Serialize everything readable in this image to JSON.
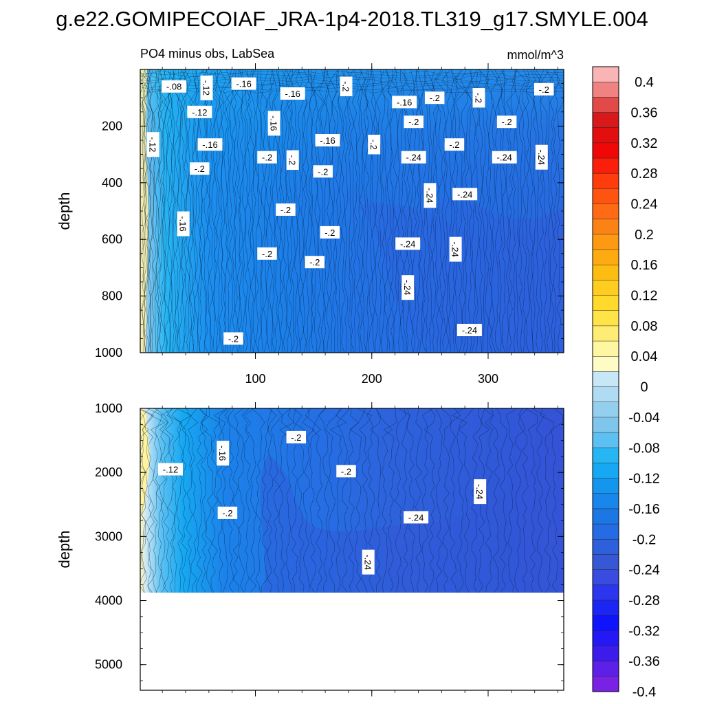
{
  "title": "g.e22.GOMIPECOIAF_JRA-1p4-2018.TL319_g17.SMYLE.004",
  "chart_data": {
    "type": "heatmap",
    "region_label": "PO4 minus obs, LabSea",
    "units": "mmol/m^3",
    "x_range": [
      1,
      365
    ],
    "x_ticks": [
      100,
      200,
      300
    ],
    "x_tick_labels": [
      "100",
      "200",
      "300"
    ],
    "panels": [
      {
        "name": "upper",
        "ylabel": "depth",
        "ylim": [
          1000,
          0
        ],
        "y_ticks": [
          200,
          400,
          600,
          800,
          1000
        ],
        "y_tick_labels": [
          "200",
          "400",
          "600",
          "800",
          "1000"
        ],
        "contour_labels": [
          {
            "text": "-.08",
            "x": 30,
            "y": 60
          },
          {
            "text": "-.12",
            "x": 58,
            "y": 65
          },
          {
            "text": "-.16",
            "x": 90,
            "y": 50
          },
          {
            "text": "-.16",
            "x": 132,
            "y": 85
          },
          {
            "text": "-.2",
            "x": 178,
            "y": 60
          },
          {
            "text": "-.16",
            "x": 228,
            "y": 115
          },
          {
            "text": "-.2",
            "x": 254,
            "y": 100
          },
          {
            "text": "-.2",
            "x": 292,
            "y": 100
          },
          {
            "text": "-.2",
            "x": 348,
            "y": 70
          },
          {
            "text": "-.12",
            "x": 52,
            "y": 150
          },
          {
            "text": "-.16",
            "x": 116,
            "y": 190
          },
          {
            "text": "-.2",
            "x": 236,
            "y": 185
          },
          {
            "text": "-.2",
            "x": 316,
            "y": 185
          },
          {
            "text": "-.12",
            "x": 12,
            "y": 265
          },
          {
            "text": "-.16",
            "x": 61,
            "y": 265
          },
          {
            "text": "-.16",
            "x": 162,
            "y": 250
          },
          {
            "text": "-.2",
            "x": 202,
            "y": 265
          },
          {
            "text": "-.2",
            "x": 271,
            "y": 265
          },
          {
            "text": "-.2",
            "x": 110,
            "y": 310
          },
          {
            "text": "-.2",
            "x": 132,
            "y": 320
          },
          {
            "text": "-.24",
            "x": 236,
            "y": 310
          },
          {
            "text": "-.24",
            "x": 314,
            "y": 310
          },
          {
            "text": "-.24",
            "x": 346,
            "y": 310
          },
          {
            "text": "-.2",
            "x": 52,
            "y": 350
          },
          {
            "text": "-.2",
            "x": 158,
            "y": 360
          },
          {
            "text": "-.24",
            "x": 250,
            "y": 445
          },
          {
            "text": "-.24",
            "x": 280,
            "y": 440
          },
          {
            "text": "-.2",
            "x": 126,
            "y": 495
          },
          {
            "text": "-.16",
            "x": 38,
            "y": 545
          },
          {
            "text": "-.2",
            "x": 164,
            "y": 575
          },
          {
            "text": "-.24",
            "x": 231,
            "y": 615
          },
          {
            "text": "-.24",
            "x": 272,
            "y": 635
          },
          {
            "text": "-.2",
            "x": 110,
            "y": 650
          },
          {
            "text": "-.2",
            "x": 151,
            "y": 680
          },
          {
            "text": "-.24",
            "x": 231,
            "y": 770
          },
          {
            "text": "-.24",
            "x": 284,
            "y": 920
          },
          {
            "text": "-.2",
            "x": 81,
            "y": 950
          }
        ]
      },
      {
        "name": "lower",
        "ylabel": "depth",
        "ylim": [
          5400,
          1000
        ],
        "y_ticks": [
          1000,
          2000,
          3000,
          4000,
          5000
        ],
        "y_tick_labels": [
          "1000",
          "2000",
          "3000",
          "4000",
          "5000"
        ],
        "seafloor_depth": 3880,
        "contour_labels": [
          {
            "text": "-.12",
            "x": 27,
            "y": 1950
          },
          {
            "text": "-.16",
            "x": 72,
            "y": 1700
          },
          {
            "text": "-.2",
            "x": 135,
            "y": 1450
          },
          {
            "text": "-.2",
            "x": 178,
            "y": 1980
          },
          {
            "text": "-.24",
            "x": 293,
            "y": 2300
          },
          {
            "text": "-.2",
            "x": 76,
            "y": 2630
          },
          {
            "text": "-.24",
            "x": 238,
            "y": 2700
          },
          {
            "text": "-.24",
            "x": 197,
            "y": 3400
          }
        ]
      }
    ],
    "colorbar": {
      "levels": [
        "0.4",
        "0.36",
        "0.32",
        "0.28",
        "0.24",
        "0.2",
        "0.16",
        "0.12",
        "0.08",
        "0.04",
        "0",
        "-0.04",
        "-0.08",
        "-0.12",
        "-0.16",
        "-0.2",
        "-0.24",
        "-0.28",
        "-0.32",
        "-0.36",
        "-0.4"
      ],
      "colors": [
        "#f9b4b4",
        "#f08282",
        "#e24a4a",
        "#d71919",
        "#e20f0f",
        "#f00808",
        "#fb1e0a",
        "#ff3c0c",
        "#ff5410",
        "#fe6b14",
        "#fb8316",
        "#fd9a12",
        "#fdab10",
        "#fdbc12",
        "#fecd20",
        "#ffda2c",
        "#ffe448",
        "#ffec72",
        "#fff6a2",
        "#fefcc4",
        "#c7e6f6",
        "#afdcf2",
        "#95cfee",
        "#7fc6ec",
        "#5cc1f2",
        "#26b6f4",
        "#16a8f2",
        "#1496ee",
        "#1886ea",
        "#1c76e4",
        "#246be4",
        "#2e60dc",
        "#3658d6",
        "#3a4ce0",
        "#2c36ee",
        "#1c26f4",
        "#1014fc",
        "#2418f4",
        "#3c1cea",
        "#5c20e6",
        "#7a22e4"
      ]
    }
  }
}
